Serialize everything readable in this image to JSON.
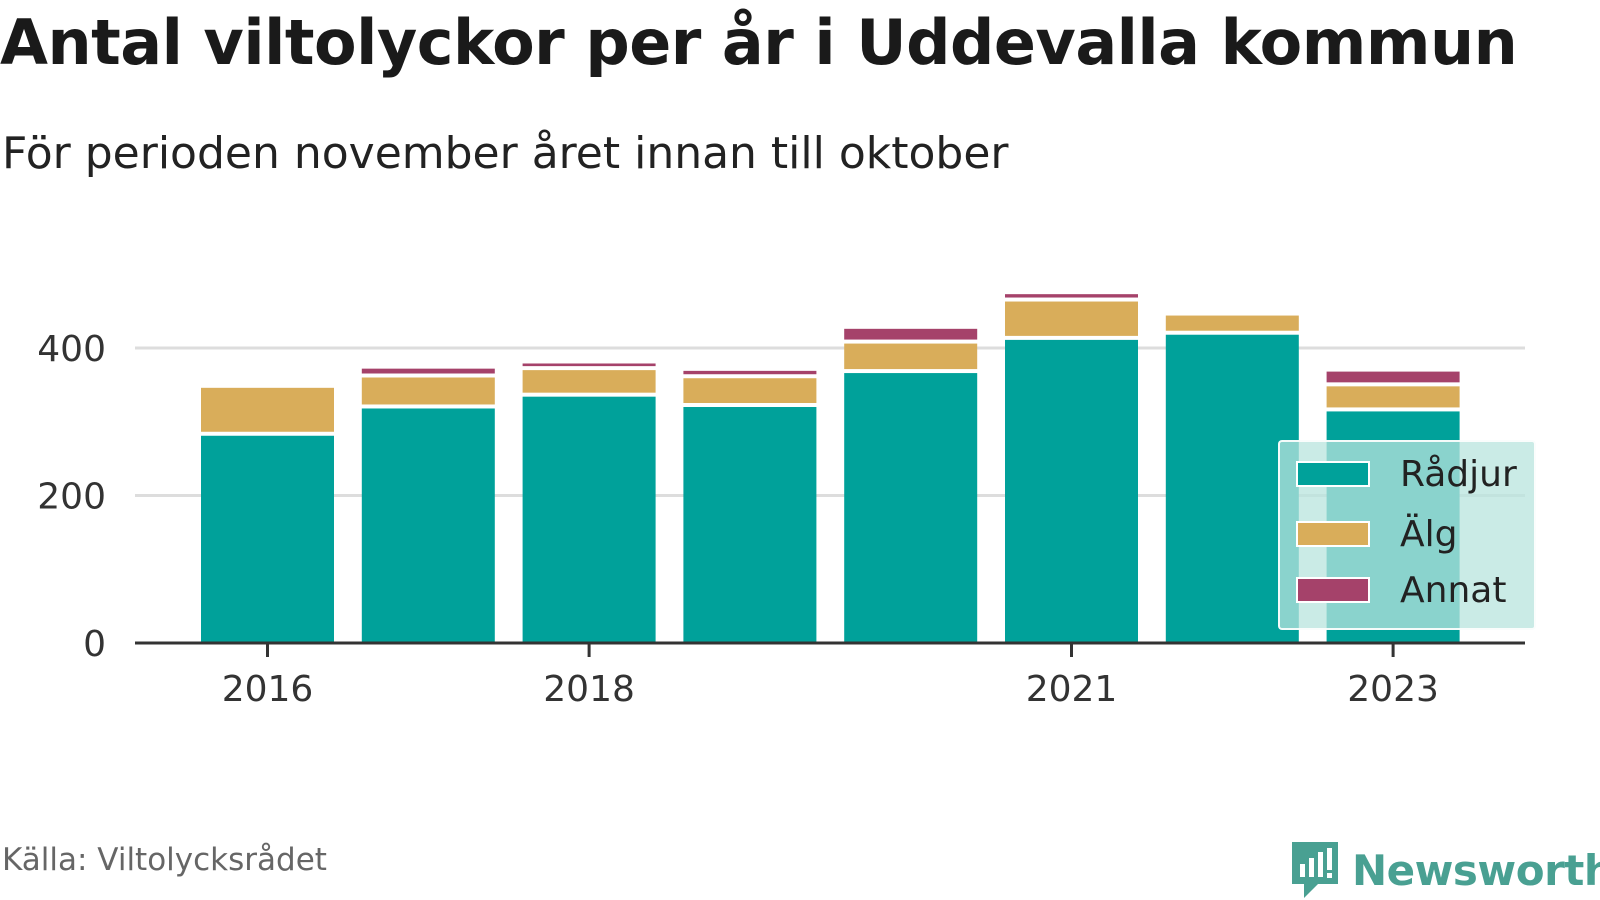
{
  "header": {
    "title": "Antal viltolyckor per år i Uddevalla kommun",
    "subtitle": "För perioden november året innan till oktober"
  },
  "footer": {
    "source": "Källa: Viltolycksrådet",
    "brand": "Newsworthy"
  },
  "colors": {
    "radjur": "#00a19a",
    "alg": "#d9ad5a",
    "annat": "#a5426a",
    "grid": "#dddddd",
    "axis": "#333333",
    "brand": "#49a092"
  },
  "chart_data": {
    "type": "bar",
    "stacked": true,
    "title": "Antal viltolyckor per år i Uddevalla kommun",
    "subtitle": "För perioden november året innan till oktober",
    "xlabel": "",
    "ylabel": "",
    "categories": [
      "2016",
      "2017",
      "2018",
      "2019",
      "2020",
      "2021",
      "2022",
      "2023"
    ],
    "x_tick_labels": [
      "2016",
      "2018",
      "2021",
      "2023"
    ],
    "y_ticks": [
      0,
      200,
      400
    ],
    "ylim": [
      0,
      500
    ],
    "grid": true,
    "legend_position": "right",
    "series": [
      {
        "name": "Rådjur",
        "values": [
          281,
          318,
          334,
          320,
          366,
          411,
          418,
          314
        ]
      },
      {
        "name": "Älg",
        "values": [
          65,
          42,
          36,
          39,
          40,
          52,
          26,
          34
        ]
      },
      {
        "name": "Annat",
        "values": [
          4,
          12,
          9,
          10,
          20,
          10,
          1,
          20
        ]
      }
    ]
  }
}
